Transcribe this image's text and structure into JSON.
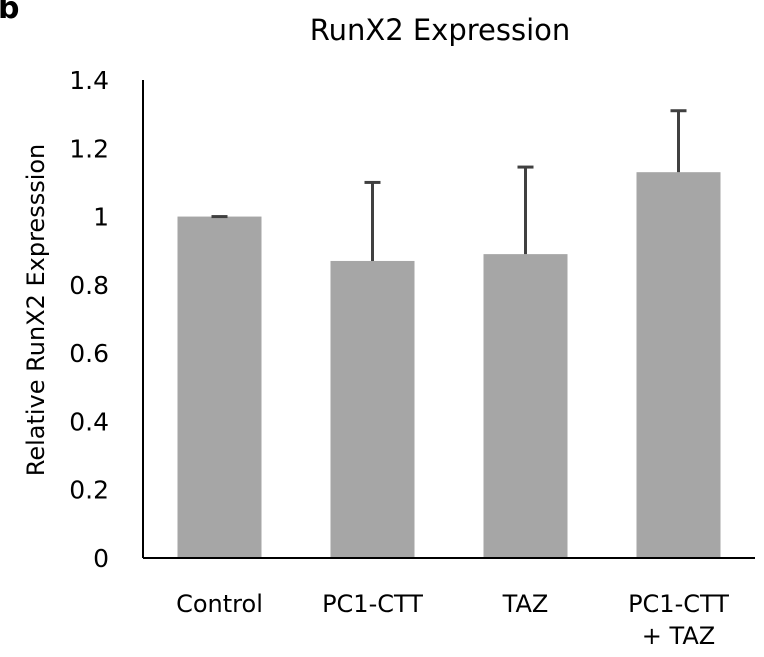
{
  "panel_label": "b",
  "chart_data": {
    "type": "bar",
    "title": "RunX2 Expression",
    "xlabel": "",
    "ylabel": "Relative RunX2 Expresssion",
    "categories": [
      [
        "Control"
      ],
      [
        "PC1-CTT"
      ],
      [
        "TAZ"
      ],
      [
        "PC1-CTT",
        "+ TAZ"
      ]
    ],
    "values": [
      1.0,
      0.87,
      0.89,
      1.13
    ],
    "errors": [
      0.0,
      0.23,
      0.255,
      0.18
    ],
    "ylim": [
      0,
      1.4
    ],
    "yticks": [
      0,
      0.2,
      0.4,
      0.6,
      0.8,
      1,
      1.2,
      1.4
    ],
    "ytick_labels": [
      "0",
      "0.2",
      "0.4",
      "0.6",
      "0.8",
      "1",
      "1.2",
      "1.4"
    ],
    "grid": false,
    "bar_color": "#a6a6a6",
    "error_bar_color": "#404040",
    "axis_color": "#000000"
  }
}
